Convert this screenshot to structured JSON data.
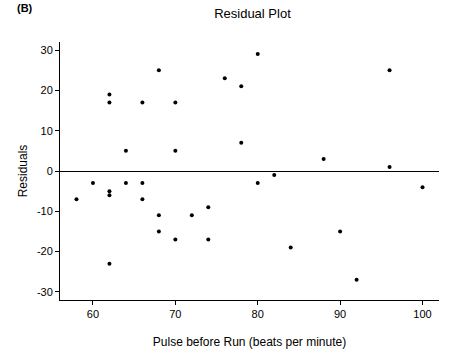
{
  "chart_data": {
    "type": "scatter",
    "title": "Residual Plot",
    "annotations": [
      "(B)"
    ],
    "x_label": "Pulse before Run (beats per minute)",
    "y_label": "Residuals",
    "x": [
      58,
      60,
      62,
      62,
      62,
      62,
      62,
      64,
      64,
      66,
      66,
      66,
      68,
      68,
      68,
      70,
      70,
      70,
      72,
      74,
      74,
      76,
      78,
      78,
      80,
      80,
      82,
      84,
      88,
      90,
      92,
      96,
      96,
      100
    ],
    "values": [
      -7,
      -3,
      19,
      17,
      -5,
      -6,
      -23,
      5,
      -3,
      17,
      -3,
      -7,
      25,
      -11,
      -15,
      17,
      5,
      -17,
      -11,
      -9,
      -17,
      23,
      21,
      7,
      29,
      -3,
      -1,
      -19,
      3,
      -15,
      -27,
      25,
      1,
      -4
    ],
    "color": "#000000",
    "marker": "circle",
    "xlim": [
      56,
      102
    ],
    "xticks": [
      60,
      70,
      80,
      90,
      100
    ],
    "ylim": [
      -32,
      32
    ],
    "yticks": [
      -30,
      -20,
      -10,
      0,
      10,
      20,
      30
    ],
    "grid": false
  }
}
